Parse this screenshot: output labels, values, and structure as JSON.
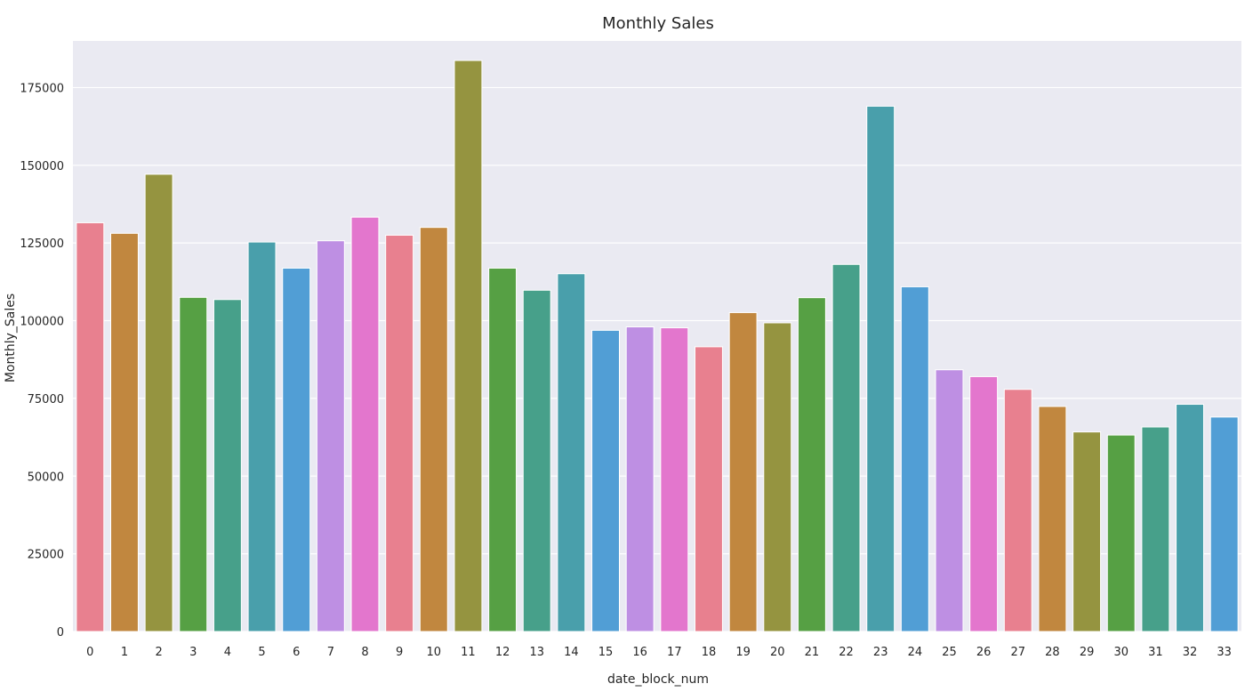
{
  "chart_data": {
    "type": "bar",
    "title": "Monthly Sales",
    "xlabel": "date_block_num",
    "ylabel": "Monthly_Sales",
    "categories": [
      "0",
      "1",
      "2",
      "3",
      "4",
      "5",
      "6",
      "7",
      "8",
      "9",
      "10",
      "11",
      "12",
      "13",
      "14",
      "15",
      "16",
      "17",
      "18",
      "19",
      "20",
      "21",
      "22",
      "23",
      "24",
      "25",
      "26",
      "27",
      "28",
      "29",
      "30",
      "31",
      "32",
      "33"
    ],
    "values": [
      131500,
      128100,
      147100,
      107500,
      106800,
      125300,
      116900,
      125700,
      133300,
      127500,
      130000,
      183700,
      116900,
      109800,
      115100,
      96900,
      98000,
      97700,
      91600,
      102600,
      99300,
      107400,
      118100,
      169000,
      110900,
      84200,
      82000,
      77900,
      72400,
      64200,
      63200,
      65800,
      73100,
      69000
    ],
    "ylim": [
      0,
      190000
    ],
    "yticks": [
      0,
      25000,
      50000,
      75000,
      100000,
      125000,
      150000,
      175000
    ],
    "ytick_labels": [
      "0",
      "25000",
      "50000",
      "75000",
      "100000",
      "125000",
      "150000",
      "175000"
    ],
    "grid": true,
    "legend": "none",
    "plot_background": "#eaeaf2",
    "grid_color": "#ffffff",
    "palette": [
      "#e8808f",
      "#c1873f",
      "#959440",
      "#56a044",
      "#47a08a",
      "#499fab",
      "#519ed5",
      "#be8fe3",
      "#e376cd"
    ]
  }
}
